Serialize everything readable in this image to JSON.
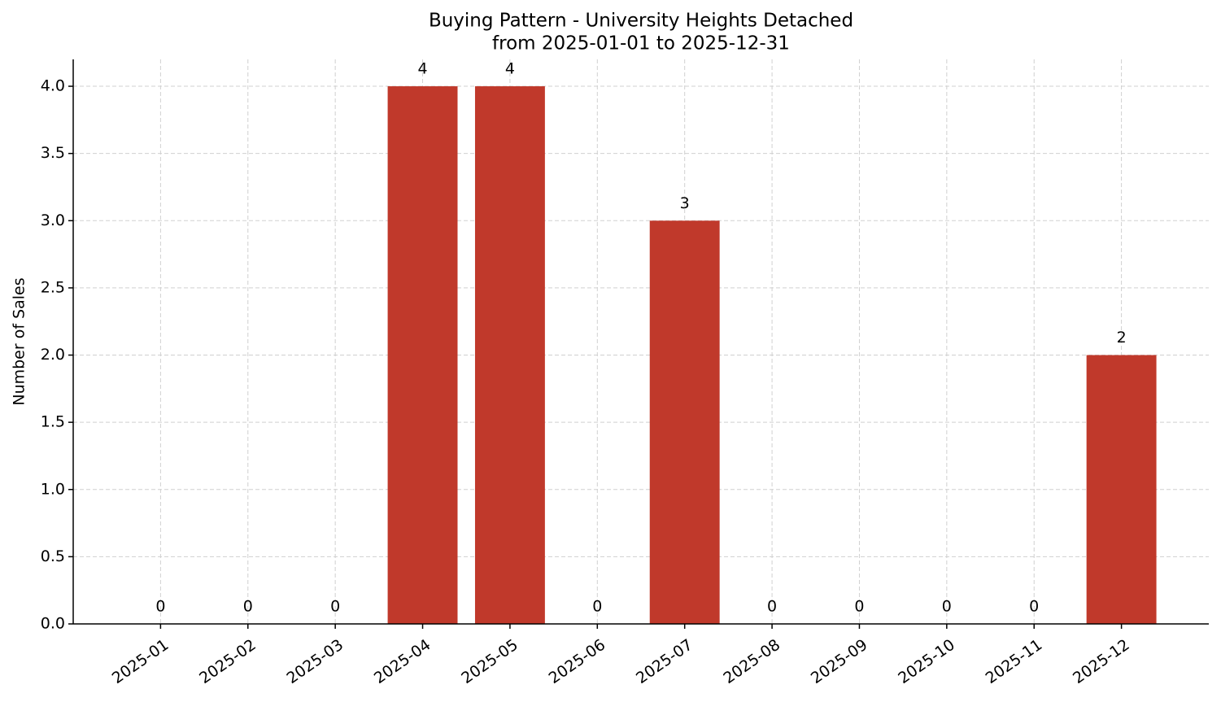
{
  "chart_data": {
    "type": "bar",
    "title": "Buying Pattern - University Heights Detached",
    "subtitle": "from 2025-01-01 to 2025-12-31",
    "y_label": "Number of Sales",
    "categories": [
      "2025-01",
      "2025-02",
      "2025-03",
      "2025-04",
      "2025-05",
      "2025-06",
      "2025-07",
      "2025-08",
      "2025-09",
      "2025-10",
      "2025-11",
      "2025-12"
    ],
    "values": [
      0,
      0,
      0,
      4,
      4,
      0,
      3,
      0,
      0,
      0,
      0,
      2
    ],
    "color": "#c0392b",
    "ylim": [
      0,
      4.2
    ],
    "yticks": [
      {
        "value": 0,
        "label": "0.0"
      },
      0.5,
      {
        "value": 1,
        "label": "1.0"
      },
      1.5,
      {
        "value": 2,
        "label": "2.0"
      },
      2.5,
      {
        "value": 3,
        "label": "3.0"
      },
      3.5,
      {
        "value": 4,
        "label": "4.0"
      }
    ],
    "grid": true
  }
}
